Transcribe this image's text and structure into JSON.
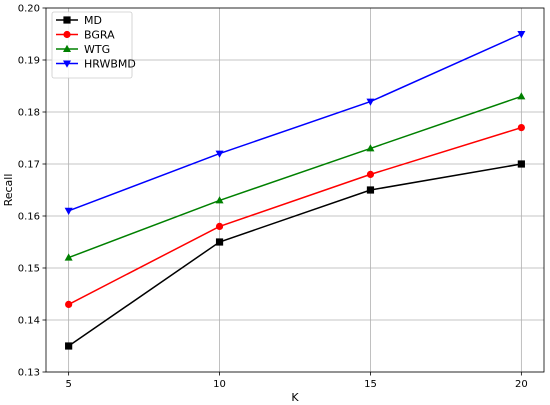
{
  "chart_data": {
    "type": "line",
    "title": "",
    "xlabel": "K",
    "ylabel": "Recall",
    "x": [
      5,
      10,
      15,
      20
    ],
    "xticks": [
      "5",
      "10",
      "15",
      "20"
    ],
    "xlim": [
      4.25,
      20.75
    ],
    "ylim": [
      0.13,
      0.2
    ],
    "yticks": [
      "0.13",
      "0.14",
      "0.15",
      "0.16",
      "0.17",
      "0.18",
      "0.19",
      "0.20"
    ],
    "grid": true,
    "legend_position": "top-left",
    "series": [
      {
        "name": "MD",
        "color": "#000000",
        "marker": "square",
        "values": [
          0.135,
          0.155,
          0.165,
          0.17
        ]
      },
      {
        "name": "BGRA",
        "color": "#ff0000",
        "marker": "circle",
        "values": [
          0.143,
          0.158,
          0.168,
          0.177
        ]
      },
      {
        "name": "WTG",
        "color": "#008000",
        "marker": "triangle-up",
        "values": [
          0.152,
          0.163,
          0.173,
          0.183
        ]
      },
      {
        "name": "HRWBMD",
        "color": "#0000ff",
        "marker": "triangle-down",
        "values": [
          0.161,
          0.172,
          0.182,
          0.195
        ]
      }
    ]
  }
}
